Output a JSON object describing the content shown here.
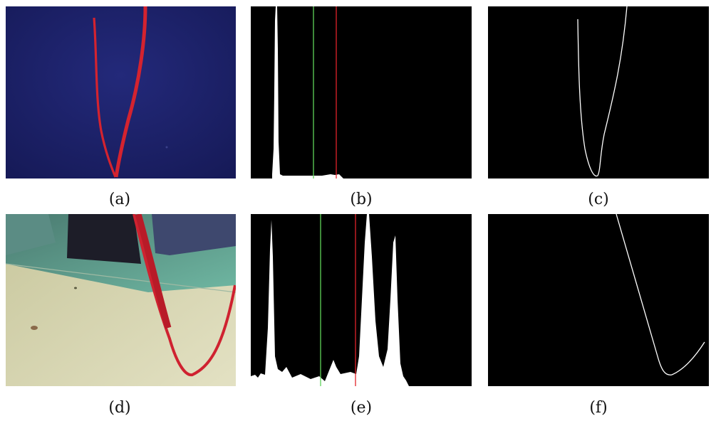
{
  "captions": {
    "a": "(a)",
    "b": "(b)",
    "c": "(c)",
    "d": "(d)",
    "e": "(e)",
    "f": "(f)"
  },
  "colors": {
    "image_a_background": "#1b2067",
    "rope_red": "#d4232f",
    "histogram_background": "#000000",
    "histogram_fill": "#ffffff",
    "threshold_green": "#5fd35a",
    "threshold_red": "#e0222a",
    "edge_background": "#000000",
    "edge_line": "#ffffff"
  }
}
